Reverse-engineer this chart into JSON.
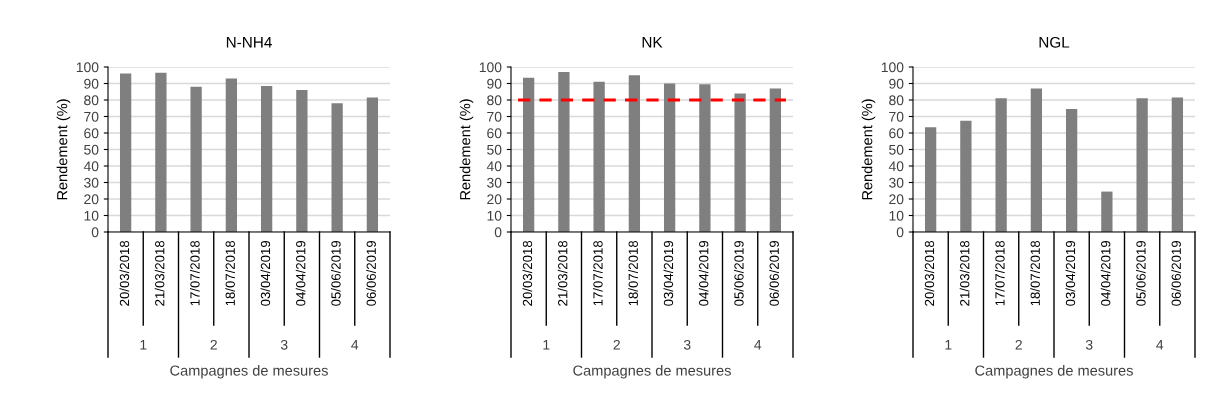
{
  "chart_data": [
    {
      "type": "bar",
      "title": "N-NH4",
      "xlabel": "Campagnes de mesures",
      "ylabel": "Rendement (%)",
      "categories": [
        "20/03/2018",
        "21/03/2018",
        "17/07/2018",
        "18/07/2018",
        "03/04/2019",
        "04/04/2019",
        "05/06/2019",
        "06/06/2019"
      ],
      "values": [
        96,
        96.5,
        88,
        93,
        88.5,
        86,
        78,
        81.5
      ],
      "color": "#7f7f7f",
      "ylim": [
        0,
        100
      ],
      "yticks": [
        0,
        10,
        20,
        30,
        40,
        50,
        60,
        70,
        80,
        90,
        100
      ],
      "grid": "y",
      "annotations": [
        "1",
        "2",
        "3",
        "4"
      ]
    },
    {
      "type": "bar",
      "title": "NK",
      "xlabel": "Campagnes de mesures",
      "ylabel": "Rendement (%)",
      "categories": [
        "20/03/2018",
        "21/03/2018",
        "17/07/2018",
        "18/07/2018",
        "03/04/2019",
        "04/04/2019",
        "05/06/2019",
        "06/06/2019"
      ],
      "values": [
        93.5,
        97,
        91,
        95,
        90,
        89.5,
        84,
        87
      ],
      "color": "#7f7f7f",
      "ylim": [
        0,
        100
      ],
      "yticks": [
        0,
        10,
        20,
        30,
        40,
        50,
        60,
        70,
        80,
        90,
        100
      ],
      "grid": "y",
      "ref_lines": [
        {
          "axis": "y",
          "value": 80,
          "label": null,
          "color": "#ff0000",
          "line_style": "dashed"
        }
      ],
      "annotations": [
        "1",
        "2",
        "3",
        "4"
      ]
    },
    {
      "type": "bar",
      "title": "NGL",
      "xlabel": "Campagnes de mesures",
      "ylabel": "Rendement (%)",
      "categories": [
        "20/03/2018",
        "21/03/2018",
        "17/07/2018",
        "18/07/2018",
        "03/04/2019",
        "04/04/2019",
        "05/06/2019",
        "06/06/2019"
      ],
      "values": [
        63.5,
        67.5,
        81,
        87,
        74.5,
        24.5,
        81,
        81.5
      ],
      "color": "#7f7f7f",
      "ylim": [
        0,
        100
      ],
      "yticks": [
        0,
        10,
        20,
        30,
        40,
        50,
        60,
        70,
        80,
        90,
        100
      ],
      "grid": "y",
      "annotations": [
        "1",
        "2",
        "3",
        "4"
      ]
    }
  ]
}
